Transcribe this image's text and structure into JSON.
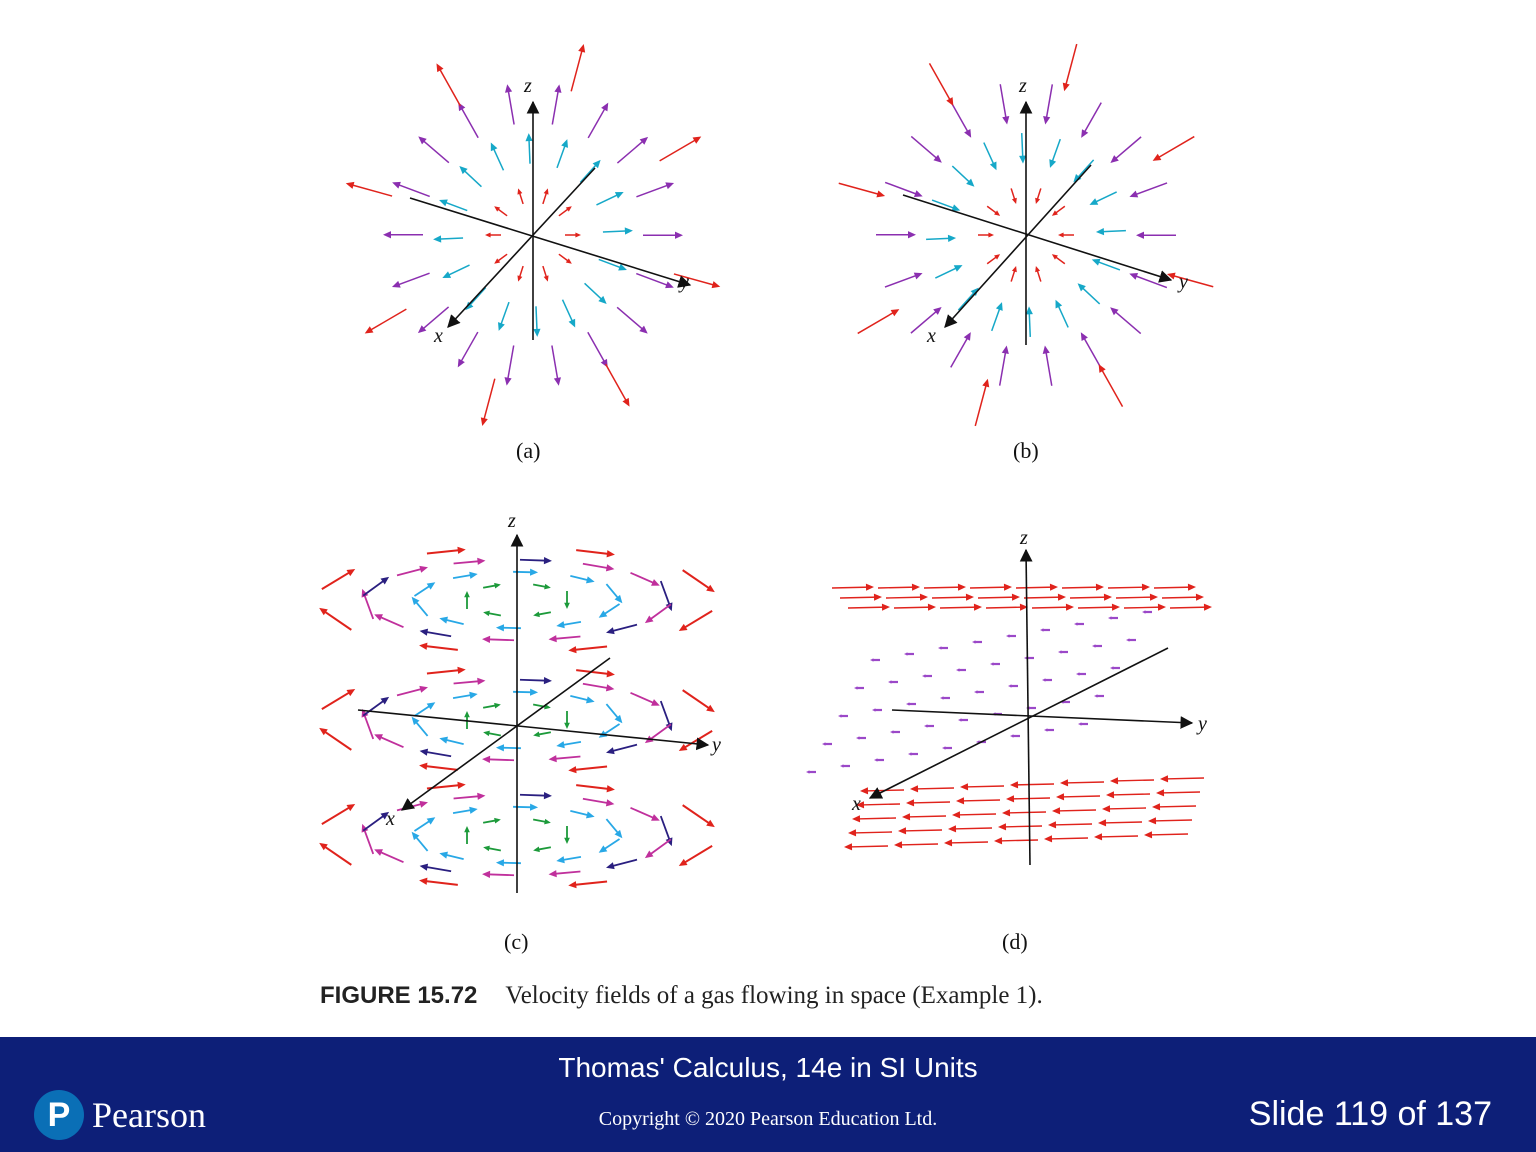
{
  "figure": {
    "panels": [
      {
        "id": "a",
        "label": "(a)",
        "axis_labels": {
          "x": "x",
          "y": "y",
          "z": "z"
        },
        "field": "outward radial flow"
      },
      {
        "id": "b",
        "label": "(b)",
        "axis_labels": {
          "x": "x",
          "y": "y",
          "z": "z"
        },
        "field": "inward radial flow"
      },
      {
        "id": "c",
        "label": "(c)",
        "axis_labels": {
          "x": "x",
          "y": "y",
          "z": "z"
        },
        "field": "counterclockwise swirl in horizontal planes"
      },
      {
        "id": "d",
        "label": "(d)",
        "axis_labels": {
          "x": "x",
          "y": "y",
          "z": "z"
        },
        "field": "horizontal planar flow reversing with height"
      }
    ],
    "caption_label": "FIGURE 15.72",
    "caption_text": "Velocity fields of a gas flowing in space (Example 1).",
    "colors": {
      "red": "#e0231c",
      "purple": "#8b2fb0",
      "cyan": "#16a8c8",
      "magenta": "#c0309c",
      "indigo": "#2a1f80",
      "green": "#1c9a3a",
      "light_blue": "#28a8e6",
      "violet": "#9b48c8"
    }
  },
  "footer": {
    "book_title": "Thomas' Calculus, 14e in SI Units",
    "copyright": "Copyright © 2020 Pearson Education Ltd.",
    "slide_counter": "Slide 119 of 137",
    "logo_mark": "P",
    "logo_text": "Pearson",
    "background": "#0d1f78",
    "logo_color": "#0a6fb6"
  }
}
